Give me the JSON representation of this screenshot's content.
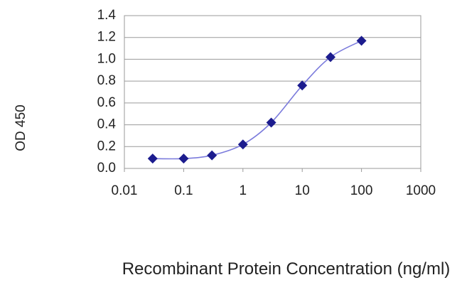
{
  "chart_data": {
    "type": "line",
    "x_label": "Recombinant Protein Concentration (ng/ml)",
    "y_label": "OD 450",
    "x_scale": "log",
    "x": [
      0.03,
      0.1,
      0.3,
      1,
      3,
      10,
      30,
      100
    ],
    "series": [
      {
        "color": "#1c1c8e",
        "line_color": "#7b7bdc",
        "values": [
          0.09,
          0.09,
          0.12,
          0.22,
          0.42,
          0.76,
          1.02,
          1.17
        ]
      }
    ],
    "xlim": [
      0.01,
      1000
    ],
    "xticks": [
      0.01,
      0.1,
      1,
      10,
      100,
      1000
    ],
    "ylim": [
      0,
      1.4
    ],
    "yticks": [
      {
        "value": 0,
        "label": "0.0"
      },
      0.2,
      0.4,
      0.6,
      0.8,
      {
        "value": 1,
        "label": "1.0"
      },
      1.2,
      1.4
    ],
    "grid": true
  }
}
